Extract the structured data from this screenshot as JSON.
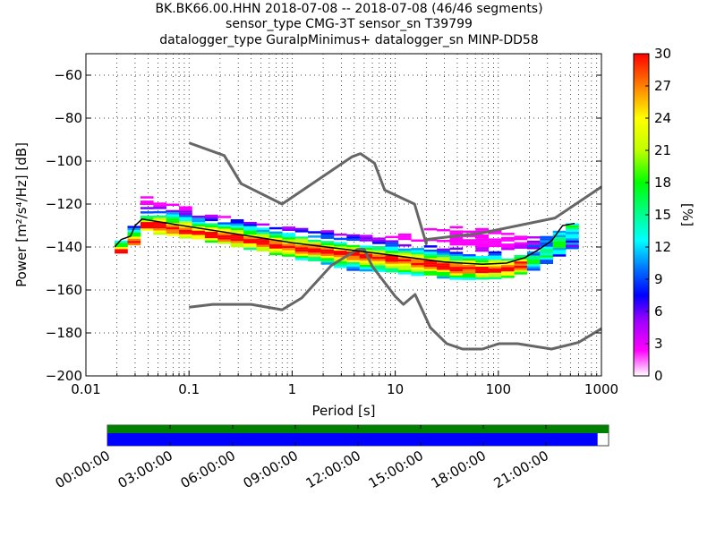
{
  "chart_data": {
    "type": "heatmap",
    "title_lines": [
      "BK.BK66.00.HHN   2018-07-08 -- 2018-07-08  (46/46 segments)",
      "sensor_type CMG-3T sensor_sn T39799",
      "datalogger_type GuralpMinimus+ datalogger_sn MINP-DD58"
    ],
    "xlabel": "Period [s]",
    "ylabel": "Power [m²/s⁴/Hz] [dB]",
    "xscale": "log",
    "xlim": [
      0.01,
      1000
    ],
    "ylim": [
      -200,
      -50
    ],
    "x_ticks": [
      {
        "value": 0.01,
        "label": "0.01"
      },
      {
        "value": 0.1,
        "label": "0.1"
      },
      {
        "value": 1,
        "label": "1"
      },
      {
        "value": 10,
        "label": "10"
      },
      {
        "value": 100,
        "label": "100"
      },
      {
        "value": 1000,
        "label": "1000"
      }
    ],
    "y_ticks": [
      {
        "value": -60,
        "label": "−60"
      },
      {
        "value": -80,
        "label": "−80"
      },
      {
        "value": -100,
        "label": "−100"
      },
      {
        "value": -120,
        "label": "−120"
      },
      {
        "value": -140,
        "label": "−140"
      },
      {
        "value": -160,
        "label": "−160"
      },
      {
        "value": -180,
        "label": "−180"
      },
      {
        "value": -200,
        "label": "−200"
      }
    ],
    "grid": true,
    "colorbar": {
      "label": "[%]",
      "range": [
        0,
        30
      ],
      "ticks": [
        "0",
        "3",
        "6",
        "9",
        "12",
        "15",
        "18",
        "21",
        "24",
        "27",
        "30"
      ],
      "colormap": [
        "#ffffff",
        "#ff00ff",
        "#8000ff",
        "#0000ff",
        "#0080ff",
        "#00ffff",
        "#00ff80",
        "#00ff00",
        "#c0ff00",
        "#ffff00",
        "#ff8000",
        "#ff0000"
      ]
    },
    "noise_models": {
      "NHNM": [
        [
          0.1,
          -91.5
        ],
        [
          0.22,
          -97.4
        ],
        [
          0.32,
          -110.5
        ],
        [
          0.8,
          -120
        ],
        [
          3.8,
          -98
        ],
        [
          4.6,
          -96.5
        ],
        [
          6.3,
          -101
        ],
        [
          7.9,
          -113.5
        ],
        [
          15.4,
          -120
        ],
        [
          20,
          -138.5
        ],
        [
          20,
          -136.5
        ],
        [
          69,
          -133.5
        ],
        [
          354,
          -126.5
        ],
        [
          1000,
          -112
        ]
      ],
      "NLNM": [
        [
          0.1,
          -168
        ],
        [
          0.17,
          -166.7
        ],
        [
          0.4,
          -166.7
        ],
        [
          0.8,
          -169.2
        ],
        [
          1.24,
          -163.7
        ],
        [
          2.4,
          -148.6
        ],
        [
          4.3,
          -141.1
        ],
        [
          5,
          -141.1
        ],
        [
          6,
          -149
        ],
        [
          10,
          -163
        ],
        [
          12,
          -166.7
        ],
        [
          15.6,
          -162.1
        ],
        [
          21.9,
          -177.5
        ],
        [
          31.6,
          -185
        ],
        [
          45,
          -187.5
        ],
        [
          70,
          -187.5
        ],
        [
          101,
          -185
        ],
        [
          154,
          -185
        ],
        [
          328,
          -187.5
        ],
        [
          600,
          -184.4
        ],
        [
          1000,
          -178
        ]
      ]
    },
    "mode_line": [
      [
        0.019,
        -140
      ],
      [
        0.022,
        -136.5
      ],
      [
        0.027,
        -135
      ],
      [
        0.03,
        -130
      ],
      [
        0.035,
        -127
      ],
      [
        0.1,
        -130.5
      ],
      [
        1,
        -138
      ],
      [
        10,
        -144
      ],
      [
        30,
        -147
      ],
      [
        70,
        -148
      ],
      [
        120,
        -147.5
      ],
      [
        180,
        -145
      ],
      [
        250,
        -141
      ],
      [
        330,
        -137
      ],
      [
        420,
        -130
      ],
      [
        550,
        -129
      ]
    ],
    "pdf_band": {
      "periods": [
        0.019,
        0.025,
        0.032,
        0.05,
        0.1,
        0.3,
        1,
        3,
        10,
        20,
        40,
        80,
        150,
        250,
        400,
        600
      ],
      "upper": [
        -137,
        -131,
        -116,
        -119,
        -122,
        -128,
        -131,
        -133,
        -134,
        -131,
        -130,
        -132,
        -135,
        -135,
        -131,
        -124
      ],
      "lower": [
        -142,
        -139,
        -131,
        -134,
        -136,
        -140,
        -145,
        -150,
        -152,
        -153,
        -155,
        -155,
        -152,
        -148,
        -142,
        -137
      ]
    },
    "timeline": {
      "tick_labels": [
        "00:00:00",
        "03:00:00",
        "06:00:00",
        "09:00:00",
        "12:00:00",
        "15:00:00",
        "18:00:00",
        "21:00:00"
      ],
      "top_bar_color": "#008000",
      "bottom_bar_color": "#0000ff",
      "coverage_top_fraction": 1.0,
      "coverage_bottom_fraction": 0.978
    }
  }
}
